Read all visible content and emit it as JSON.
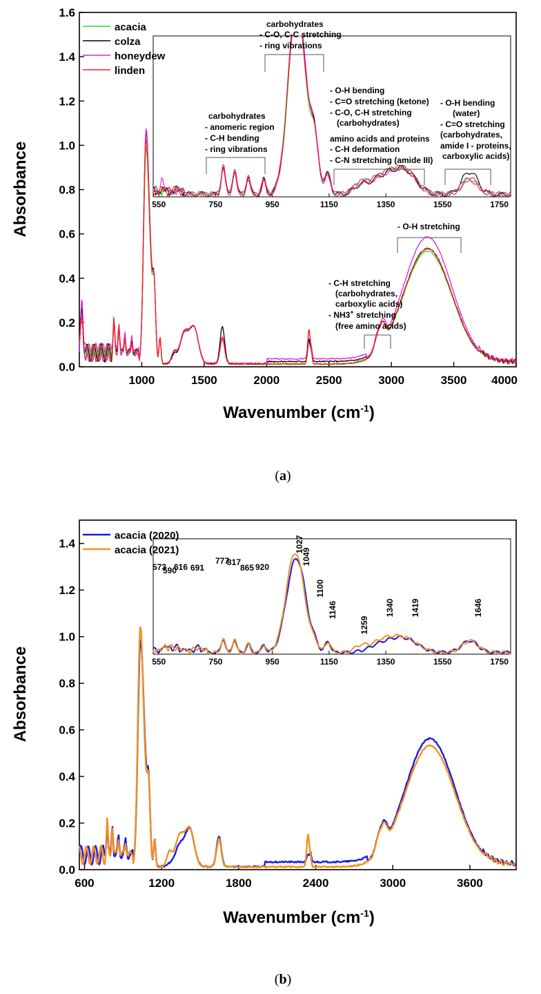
{
  "chart_data": [
    {
      "type": "line",
      "panel": "a",
      "caption_prefix": "(",
      "caption_letter": "a",
      "caption_suffix": ")",
      "xlabel": "Wavenumber (cm",
      "xlabel_sup": "-1",
      "xlabel_close": ")",
      "ylabel": "Absorbance",
      "xlim": [
        500,
        4000
      ],
      "ylim": [
        0,
        1.6
      ],
      "xticks": [
        "1000",
        "1500",
        "2000",
        "2500",
        "3000",
        "3500",
        "4000"
      ],
      "yticks": [
        "0.0",
        "0.2",
        "0.4",
        "0.6",
        "0.8",
        "1.0",
        "1.2",
        "1.4",
        "1.6"
      ],
      "series": [
        {
          "name": "acacia",
          "color": "#22dd22"
        },
        {
          "name": "colza",
          "color": "#000000"
        },
        {
          "name": "honeydew",
          "color": "#e020e0"
        },
        {
          "name": "linden",
          "color": "#ff2020"
        }
      ],
      "inset_xticks": [
        "550",
        "750",
        "950",
        "1150",
        "1350",
        "1550",
        "1750"
      ],
      "annotations": {
        "carb_ring": [
          "carbohydrates",
          "- anomeric region",
          "- C-H bending",
          "- ring vibrations"
        ],
        "carb_co": [
          "carbohydrates",
          "- C-O, C-C stretching",
          "- ring vibrations"
        ],
        "oh_bend": [
          "- O-H bending",
          "- C=O stretching (ketone)",
          "- C-O, C-H stretching",
          "(carbohydrates)"
        ],
        "amino": [
          "amino acids and proteins",
          "- C-H deformation",
          "- C-N stretching (amide III)"
        ],
        "water": [
          "- O-H bending",
          "(water)",
          "- C=O stretching",
          "(carbohydrates,",
          "amide I - proteins,",
          "carboxylic acids)"
        ],
        "ch_stretch": [
          "- C-H stretching",
          "(carbohydrates,",
          "carboxylic acids)",
          "- NH3",
          "+",
          " stretching",
          "(free amino acids)"
        ],
        "oh_stretch": [
          "- O-H stretching"
        ]
      }
    },
    {
      "type": "line",
      "panel": "b",
      "caption_prefix": "(",
      "caption_letter": "b",
      "caption_suffix": ")",
      "xlabel": "Wavenumber (cm",
      "xlabel_sup": "-1",
      "xlabel_close": ")",
      "ylabel": "Absorbance",
      "xlim": [
        560,
        3960
      ],
      "ylim": [
        0,
        1.5
      ],
      "xticks": [
        "600",
        "1200",
        "1800",
        "2400",
        "3000",
        "3600"
      ],
      "yticks": [
        "0.0",
        "0.2",
        "0.4",
        "0.6",
        "0.8",
        "1.0",
        "1.2",
        "1.4"
      ],
      "series": [
        {
          "name": "acacia (2020)",
          "color": "#1a1ae0"
        },
        {
          "name": "acacia (2021)",
          "color": "#f5901e"
        }
      ],
      "inset_xticks": [
        "550",
        "750",
        "950",
        "1150",
        "1350",
        "1550",
        "1750"
      ],
      "peak_labels": [
        "573",
        "590",
        "616",
        "691",
        "777",
        "817",
        "865",
        "920",
        "1027",
        "1049",
        "1100",
        "1146",
        "1259",
        "1340",
        "1419",
        "1646"
      ]
    }
  ]
}
